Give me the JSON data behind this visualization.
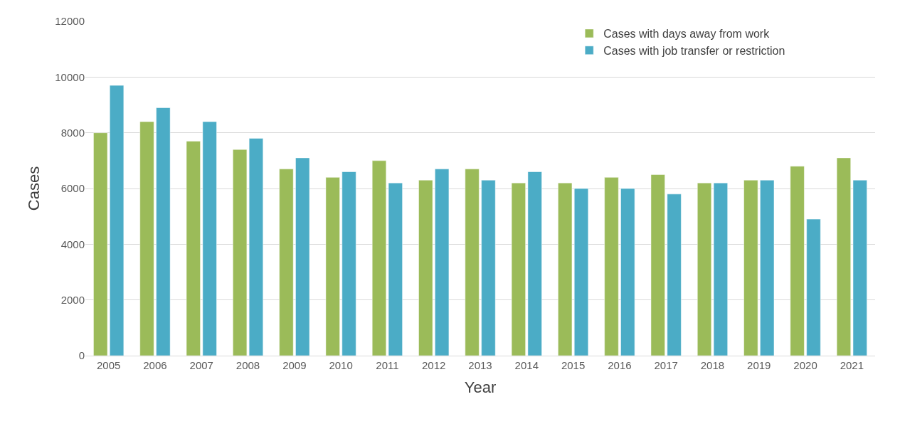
{
  "chart_data": {
    "type": "bar",
    "xlabel": "Year",
    "ylabel": "Cases",
    "categories": [
      "2005",
      "2006",
      "2007",
      "2008",
      "2009",
      "2010",
      "2011",
      "2012",
      "2013",
      "2014",
      "2015",
      "2016",
      "2017",
      "2018",
      "2019",
      "2020",
      "2021"
    ],
    "series": [
      {
        "name": "Cases with days away from work",
        "color": "#9bbb59",
        "values": [
          8000,
          8400,
          7700,
          7400,
          6700,
          6400,
          7000,
          6300,
          6700,
          6200,
          6200,
          6400,
          6500,
          6200,
          6300,
          6800,
          7100
        ]
      },
      {
        "name": "Cases with job transfer or restriction",
        "color": "#4bacc6",
        "values": [
          9700,
          8900,
          8400,
          7800,
          7100,
          6600,
          6200,
          6700,
          6300,
          6600,
          6000,
          6000,
          5800,
          6200,
          6300,
          4900,
          6300
        ]
      }
    ],
    "ylim": [
      0,
      12000
    ],
    "yticks": [
      0,
      2000,
      4000,
      6000,
      8000,
      10000,
      12000
    ],
    "grid": "y",
    "legend": "top right"
  }
}
